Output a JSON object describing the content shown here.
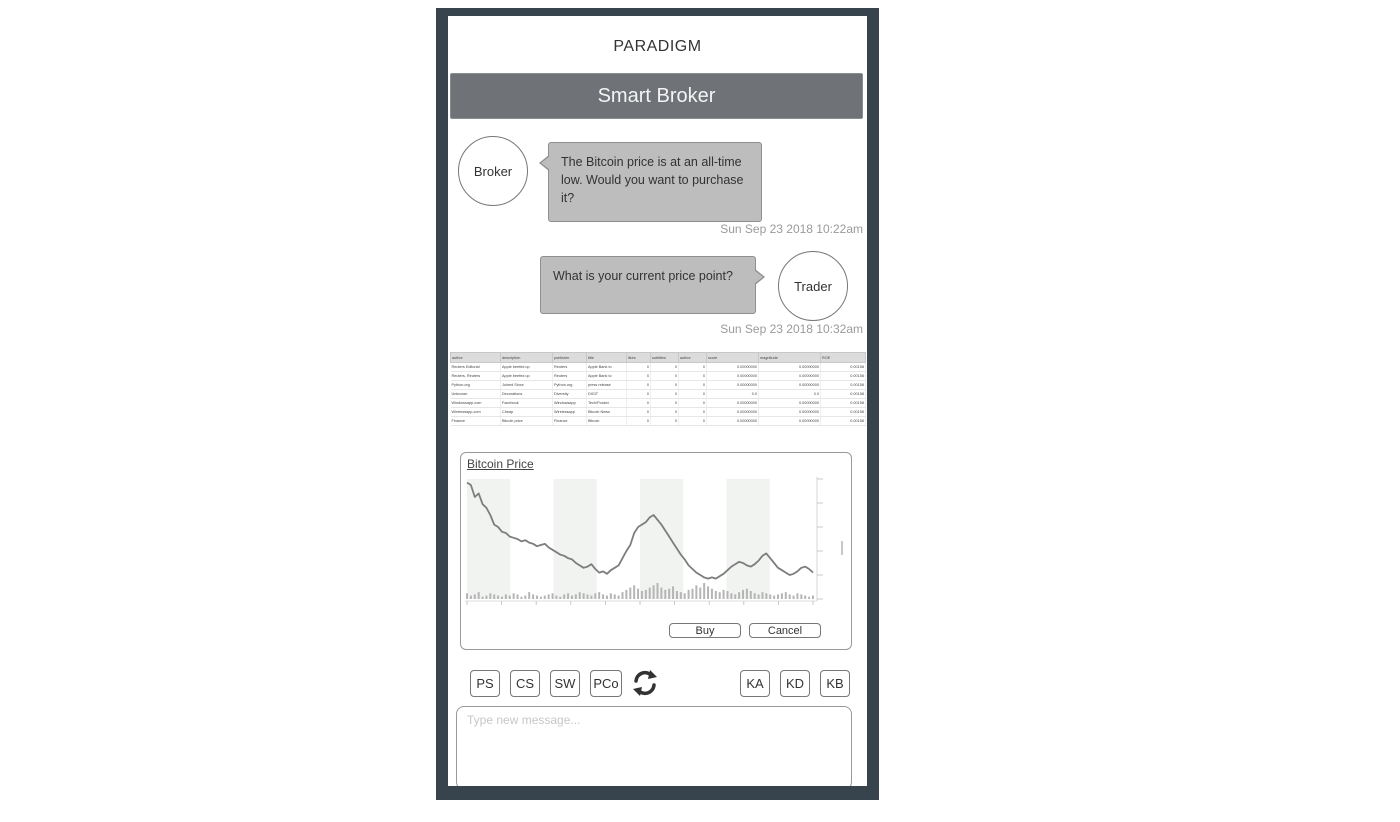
{
  "app": {
    "title": "PARADIGM"
  },
  "header": {
    "title": "Smart Broker"
  },
  "messages": [
    {
      "sender": "Broker",
      "text": "The Bitcoin price is at an all-time low. Would you want to purchase it?",
      "time": "Sun Sep 23 2018 10:22am"
    },
    {
      "sender": "Trader",
      "text": "What is your current price point?",
      "time": "Sun Sep 23 2018 10:32am"
    }
  ],
  "table": {
    "headers": [
      "author",
      "description",
      "publisher",
      "title",
      "likes",
      "subtitles",
      "author",
      "score",
      "magnitude",
      "ROE"
    ],
    "rows": [
      [
        "Reuters Editorial",
        "Apple beefed up",
        "Reuters",
        "Apple Bank to",
        "0",
        "0",
        "0",
        "0.00000000",
        "0.00000000",
        "0.00158"
      ],
      [
        "Reuters, Reuters",
        "Apple beefed up",
        "Reuters",
        "Apple Bank to",
        "0",
        "0",
        "0",
        "0.00000000",
        "0.00000000",
        "0.00158"
      ],
      [
        "Python.org",
        "Joined Since",
        "Python.org",
        "press release",
        "0",
        "0",
        "0",
        "0.00000000",
        "0.00000000",
        "0.00158"
      ],
      [
        "Unknown",
        "Decorations",
        "Diversity",
        "DIGIT",
        "0",
        "0",
        "0",
        "0.0",
        "0.0",
        "0.00158"
      ],
      [
        "Windowsapp.com",
        "Facebook",
        "Windowsapp",
        "Tech/Pocket",
        "0",
        "0",
        "0",
        "0.00000000",
        "0.00000000",
        "0.00158"
      ],
      [
        "Wirelessapp.com",
        "Cheap",
        "Wirelessapp",
        "Bitcoin News",
        "0",
        "0",
        "0",
        "0.00000000",
        "0.00000000",
        "0.00158"
      ],
      [
        "Finance",
        "Bitcoin price",
        "Finance",
        "Bitcoin",
        "0",
        "0",
        "0",
        "0.00000000",
        "0.00000000",
        "0.00158"
      ]
    ]
  },
  "chart": {
    "title": "Bitcoin Price",
    "buy_label": "Buy",
    "cancel_label": "Cancel"
  },
  "chart_data": {
    "type": "line",
    "title": "Bitcoin Price",
    "series": [
      {
        "values": [
          97,
          95,
          85,
          88,
          79,
          76,
          70,
          62,
          60,
          56,
          55,
          52,
          51,
          50,
          48,
          49,
          47,
          46,
          44,
          45,
          46,
          43,
          41,
          39,
          37,
          36,
          34,
          33,
          30,
          28,
          26,
          27,
          29,
          25,
          22,
          23,
          21,
          24,
          26,
          28,
          34,
          40,
          45,
          55,
          60,
          62,
          64,
          68,
          70,
          66,
          62,
          57,
          52,
          47,
          42,
          37,
          33,
          28,
          25,
          22,
          20,
          18,
          17,
          18,
          17,
          19,
          21,
          24,
          27,
          29,
          31,
          30,
          28,
          27,
          29,
          32,
          36,
          38,
          34,
          30,
          26,
          24,
          22,
          20,
          21,
          23,
          26,
          27,
          25,
          22
        ]
      }
    ],
    "volumes": [
      5,
      3,
      4,
      6,
      2,
      3,
      5,
      4,
      3,
      2,
      4,
      3,
      5,
      4,
      2,
      3,
      6,
      4,
      3,
      2,
      3,
      4,
      5,
      3,
      2,
      4,
      5,
      3,
      4,
      6,
      5,
      4,
      3,
      5,
      6,
      4,
      3,
      5,
      4,
      3,
      6,
      8,
      10,
      12,
      9,
      7,
      8,
      10,
      12,
      14,
      10,
      8,
      9,
      11,
      7,
      6,
      5,
      8,
      9,
      12,
      10,
      14,
      11,
      9,
      7,
      6,
      8,
      7,
      5,
      4,
      6,
      8,
      9,
      7,
      5,
      4,
      6,
      5,
      4,
      3,
      4,
      5,
      6,
      4,
      3,
      5,
      4,
      3,
      2,
      3
    ],
    "ylim": [
      0,
      100
    ]
  },
  "toolbar": {
    "left": [
      "PS",
      "CS",
      "SW",
      "PCo"
    ],
    "right": [
      "KA",
      "KD",
      "KB"
    ]
  },
  "input": {
    "placeholder": "Type new message..."
  }
}
